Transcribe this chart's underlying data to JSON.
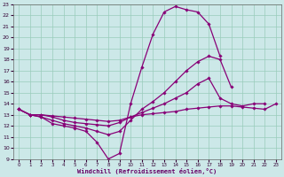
{
  "xlabel": "Windchill (Refroidissement éolien,°C)",
  "xlim": [
    -0.5,
    23.5
  ],
  "ylim": [
    9,
    23
  ],
  "xticks": [
    0,
    1,
    2,
    3,
    4,
    5,
    6,
    7,
    8,
    9,
    10,
    11,
    12,
    13,
    14,
    15,
    16,
    17,
    18,
    19,
    20,
    21,
    22,
    23
  ],
  "yticks": [
    9,
    10,
    11,
    12,
    13,
    14,
    15,
    16,
    17,
    18,
    19,
    20,
    21,
    22,
    23
  ],
  "bg_color": "#cce8e8",
  "line_color": "#880077",
  "grid_color": "#99ccbb",
  "lines": [
    {
      "x": [
        0,
        1,
        2,
        3,
        4,
        5,
        6,
        7,
        8,
        9,
        10,
        11,
        12,
        13,
        14,
        15,
        16,
        17,
        18,
        19,
        20,
        21,
        22,
        23
      ],
      "y": [
        13.5,
        13.0,
        12.8,
        12.2,
        12.0,
        11.8,
        11.5,
        10.5,
        9.0,
        9.5,
        14.0,
        17.3,
        20.3,
        22.3,
        22.8,
        22.5,
        22.3,
        21.2,
        18.3,
        null,
        null,
        null,
        null,
        null
      ]
    },
    {
      "x": [
        0,
        1,
        2,
        3,
        4,
        5,
        6,
        7,
        8,
        9,
        10,
        11,
        12,
        13,
        14,
        15,
        16,
        17,
        18,
        19,
        20,
        21,
        22,
        23
      ],
      "y": [
        13.5,
        13.0,
        12.8,
        12.5,
        12.2,
        12.0,
        11.8,
        11.5,
        11.2,
        11.5,
        12.5,
        13.5,
        14.2,
        15.0,
        16.0,
        17.0,
        17.8,
        18.3,
        18.0,
        15.5,
        null,
        null,
        null,
        null
      ]
    },
    {
      "x": [
        0,
        1,
        2,
        3,
        4,
        5,
        6,
        7,
        8,
        9,
        10,
        11,
        12,
        13,
        14,
        15,
        16,
        17,
        18,
        19,
        20,
        21,
        22,
        23
      ],
      "y": [
        13.5,
        13.0,
        13.0,
        12.8,
        12.5,
        12.3,
        12.2,
        12.1,
        12.0,
        12.3,
        12.8,
        13.2,
        13.6,
        14.0,
        14.5,
        15.0,
        15.8,
        16.3,
        14.5,
        14.0,
        13.8,
        14.0,
        14.0,
        null
      ]
    },
    {
      "x": [
        0,
        1,
        2,
        3,
        4,
        5,
        6,
        7,
        8,
        9,
        10,
        11,
        12,
        13,
        14,
        15,
        16,
        17,
        18,
        19,
        20,
        21,
        22,
        23
      ],
      "y": [
        13.5,
        13.0,
        13.0,
        12.9,
        12.8,
        12.7,
        12.6,
        12.5,
        12.4,
        12.5,
        12.8,
        13.0,
        13.1,
        13.2,
        13.3,
        13.5,
        13.6,
        13.7,
        13.8,
        13.8,
        13.7,
        13.6,
        13.5,
        14.0
      ]
    }
  ]
}
